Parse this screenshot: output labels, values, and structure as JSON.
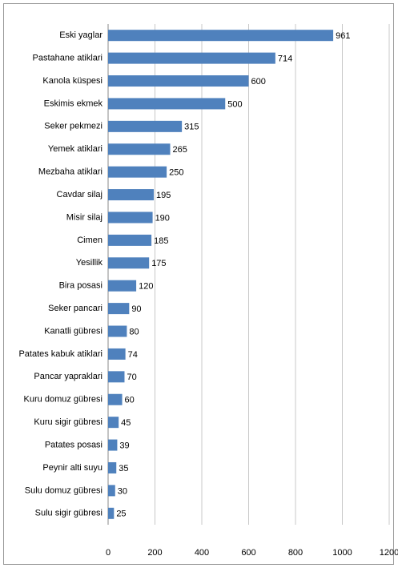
{
  "chart_data": {
    "type": "bar",
    "categories": [
      "Eski yaglar",
      "Pastahane atiklari",
      "Kanola küspesi",
      "Eskimis ekmek",
      "Seker pekmezi",
      "Yemek atiklari",
      "Mezbaha atiklari",
      "Cavdar silaj",
      "Misir silaj",
      "Cimen",
      "Yesillik",
      "Bira posasi",
      "Seker pancari",
      "Kanatli gübresi",
      "Patates kabuk atiklari",
      "Pancar yapraklari",
      "Kuru domuz gübresi",
      "Kuru sigir gübresi",
      "Patates posasi",
      "Peynir alti suyu",
      "Sulu domuz gübresi",
      "Sulu sigir gübresi"
    ],
    "values": [
      961,
      714,
      600,
      500,
      315,
      265,
      250,
      195,
      190,
      185,
      175,
      120,
      90,
      80,
      74,
      70,
      60,
      45,
      39,
      35,
      30,
      25
    ],
    "color": "#4f81bd",
    "xlim": [
      0,
      1200
    ],
    "xticks": [
      0,
      200,
      400,
      600,
      800,
      1000,
      1200
    ],
    "grid": true
  }
}
